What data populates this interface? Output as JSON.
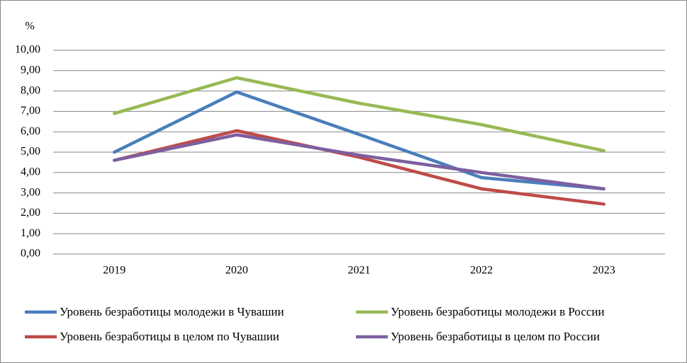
{
  "chart_data": {
    "type": "line",
    "y_label": "%",
    "categories": [
      "2019",
      "2020",
      "2021",
      "2022",
      "2023"
    ],
    "series": [
      {
        "name": "Уровень безработицы молодежи в Чувашии",
        "color": "#4a7ebb",
        "values": [
          5.0,
          7.95,
          5.87,
          3.75,
          3.2
        ]
      },
      {
        "name": "Уровень безработицы молодежи в России",
        "color": "#98b954",
        "values": [
          6.9,
          8.65,
          7.4,
          6.35,
          5.07
        ]
      },
      {
        "name": "Уровень безработицы в целом по Чувашии",
        "color": "#be4b48",
        "values": [
          4.6,
          6.05,
          4.75,
          3.2,
          2.45
        ]
      },
      {
        "name": "Уровень безработицы в целом по России",
        "color": "#7d5fa0",
        "values": [
          4.6,
          5.85,
          4.85,
          4.0,
          3.2
        ]
      }
    ],
    "ylim": [
      0,
      10
    ],
    "yticks": [
      {
        "value": 0,
        "label": "0,00"
      },
      {
        "value": 1,
        "label": "1,00"
      },
      {
        "value": 2,
        "label": "2,00"
      },
      {
        "value": 3,
        "label": "3,00"
      },
      {
        "value": 4,
        "label": "4,00"
      },
      {
        "value": 5,
        "label": "5,00"
      },
      {
        "value": 6,
        "label": "6,00"
      },
      {
        "value": 7,
        "label": "7,00"
      },
      {
        "value": 8,
        "label": "8,00"
      },
      {
        "value": 9,
        "label": "9,00"
      },
      {
        "value": 10,
        "label": "10,00"
      }
    ],
    "grid": true
  }
}
